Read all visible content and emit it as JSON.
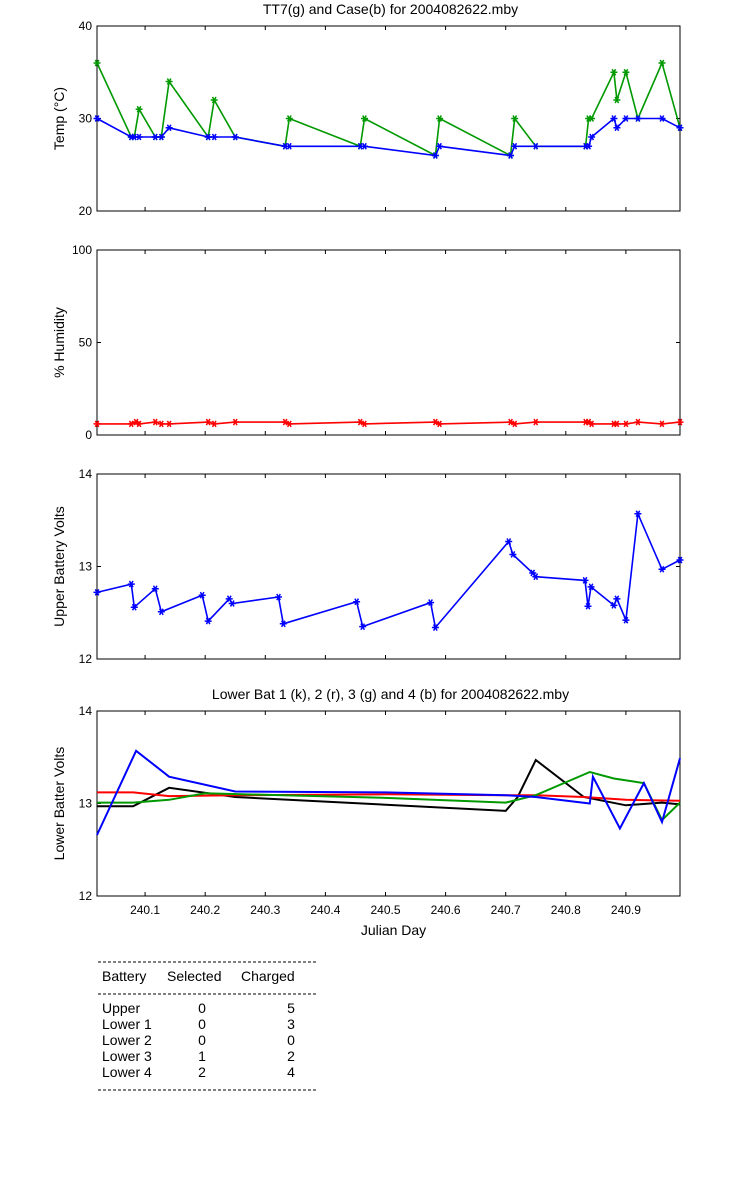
{
  "chart_data": [
    {
      "type": "line",
      "title": "TT7(g) and Case(b) for 2004082622.mby",
      "ylabel": "Temp  (°C)",
      "xlabel": "",
      "xlim": [
        240.02,
        240.99
      ],
      "ylim": [
        20,
        40
      ],
      "yticks": [
        20,
        30,
        40
      ],
      "x": [
        240.02,
        240.077,
        240.082,
        240.09,
        240.117,
        240.127,
        240.14,
        240.205,
        240.215,
        240.25,
        240.333,
        240.34,
        240.458,
        240.465,
        240.583,
        240.59,
        240.708,
        240.715,
        240.75,
        240.833,
        240.838,
        240.843,
        240.88,
        240.885,
        240.9,
        240.92,
        240.96,
        240.99
      ],
      "series": [
        {
          "name": "TT7",
          "color": "#009900",
          "values": [
            36,
            28,
            28,
            31,
            28,
            28,
            34,
            28,
            32,
            28,
            27,
            30,
            27,
            30,
            26,
            30,
            26,
            30,
            27,
            27,
            30,
            30,
            35,
            32,
            35,
            30,
            36,
            29
          ]
        },
        {
          "name": "Case",
          "color": "#0000ff",
          "values": [
            30,
            28,
            28,
            28,
            28,
            28,
            29,
            28,
            28,
            28,
            27,
            27,
            27,
            27,
            26,
            27,
            26,
            27,
            27,
            27,
            27,
            28,
            30,
            29,
            30,
            30,
            30,
            29
          ]
        }
      ]
    },
    {
      "type": "line",
      "title": "",
      "ylabel": "% Humidity",
      "xlabel": "",
      "xlim": [
        240.02,
        240.99
      ],
      "ylim": [
        0,
        100
      ],
      "yticks": [
        0,
        50,
        100
      ],
      "x": [
        240.02,
        240.077,
        240.085,
        240.09,
        240.117,
        240.127,
        240.14,
        240.205,
        240.215,
        240.25,
        240.333,
        240.34,
        240.458,
        240.465,
        240.583,
        240.59,
        240.708,
        240.715,
        240.75,
        240.833,
        240.838,
        240.843,
        240.88,
        240.885,
        240.9,
        240.92,
        240.96,
        240.99
      ],
      "series": [
        {
          "name": "Humidity",
          "color": "#ff0000",
          "values": [
            6,
            6,
            7,
            6,
            7,
            6,
            6,
            7,
            6,
            7,
            7,
            6,
            7,
            6,
            7,
            6,
            7,
            6,
            7,
            7,
            7,
            6,
            6,
            6,
            6,
            7,
            6,
            7
          ]
        }
      ]
    },
    {
      "type": "line",
      "title": "",
      "ylabel": "Upper Battery Volts",
      "xlabel": "",
      "xlim": [
        240.02,
        240.99
      ],
      "ylim": [
        12,
        14
      ],
      "yticks": [
        12,
        13,
        14
      ],
      "x": [
        240.02,
        240.077,
        240.082,
        240.117,
        240.127,
        240.195,
        240.205,
        240.24,
        240.245,
        240.322,
        240.33,
        240.452,
        240.462,
        240.575,
        240.583,
        240.705,
        240.712,
        240.745,
        240.75,
        240.832,
        240.837,
        240.842,
        240.88,
        240.885,
        240.9,
        240.92,
        240.96,
        240.99
      ],
      "series": [
        {
          "name": "Upper",
          "color": "#0000ff",
          "values": [
            12.72,
            12.81,
            12.56,
            12.76,
            12.51,
            12.69,
            12.41,
            12.65,
            12.6,
            12.67,
            12.38,
            12.62,
            12.35,
            12.61,
            12.34,
            13.27,
            13.13,
            12.93,
            12.89,
            12.85,
            12.57,
            12.78,
            12.58,
            12.65,
            12.42,
            13.57,
            12.97,
            13.07
          ]
        }
      ]
    },
    {
      "type": "line",
      "title": "Lower Bat 1 (k), 2 (r), 3 (g) and 4 (b) for 2004082622.mby",
      "ylabel": "Lower Batter Volts",
      "xlabel": "Julian Day",
      "xlim": [
        240.02,
        240.99
      ],
      "ylim": [
        12,
        14
      ],
      "yticks": [
        12,
        13,
        14
      ],
      "xticks": [
        240.1,
        240.2,
        240.3,
        240.4,
        240.5,
        240.6,
        240.7,
        240.8,
        240.9
      ],
      "xticklabels": [
        "240.1",
        "240.2",
        "240.3",
        "240.4",
        "240.5",
        "240.6",
        "240.7",
        "240.8",
        "240.9"
      ],
      "series": [
        {
          "name": "Lower Bat 1",
          "color": "#000000",
          "x": [
            240.02,
            240.08,
            240.14,
            240.25,
            240.7,
            240.72,
            240.75,
            240.83,
            240.9,
            240.96,
            240.99
          ],
          "values": [
            12.97,
            12.97,
            13.17,
            13.07,
            12.92,
            13.07,
            13.47,
            13.07,
            12.98,
            13.01,
            12.99
          ]
        },
        {
          "name": "Lower Bat 2",
          "color": "#ff0000",
          "x": [
            240.02,
            240.08,
            240.14,
            240.25,
            240.5,
            240.7,
            240.75,
            240.83,
            240.9,
            240.99
          ],
          "values": [
            13.12,
            13.12,
            13.08,
            13.09,
            13.1,
            13.09,
            13.09,
            13.07,
            13.04,
            13.03
          ]
        },
        {
          "name": "Lower Bat 3",
          "color": "#009900",
          "x": [
            240.02,
            240.08,
            240.14,
            240.2,
            240.5,
            240.7,
            240.75,
            240.84,
            240.88,
            240.93,
            240.96,
            240.99
          ],
          "values": [
            13.01,
            13.01,
            13.04,
            13.11,
            13.06,
            13.01,
            13.09,
            13.34,
            13.27,
            13.22,
            12.82,
            13.01
          ]
        },
        {
          "name": "Lower Bat 4",
          "color": "#0000ff",
          "x": [
            240.02,
            240.085,
            240.14,
            240.25,
            240.5,
            240.7,
            240.75,
            240.84,
            240.845,
            240.89,
            240.93,
            240.96,
            240.99
          ],
          "values": [
            12.66,
            13.57,
            13.29,
            13.13,
            13.12,
            13.09,
            13.07,
            13.0,
            13.29,
            12.73,
            13.22,
            12.8,
            13.49
          ]
        }
      ]
    }
  ],
  "summary_table": {
    "headers": [
      "Battery",
      "Selected",
      "Charged"
    ],
    "rows": [
      [
        "Upper",
        "0",
        "5"
      ],
      [
        "Lower 1",
        "0",
        "3"
      ],
      [
        "Lower 2",
        "0",
        "0"
      ],
      [
        "Lower 3",
        "1",
        "2"
      ],
      [
        "Lower 4",
        "2",
        "4"
      ]
    ]
  }
}
